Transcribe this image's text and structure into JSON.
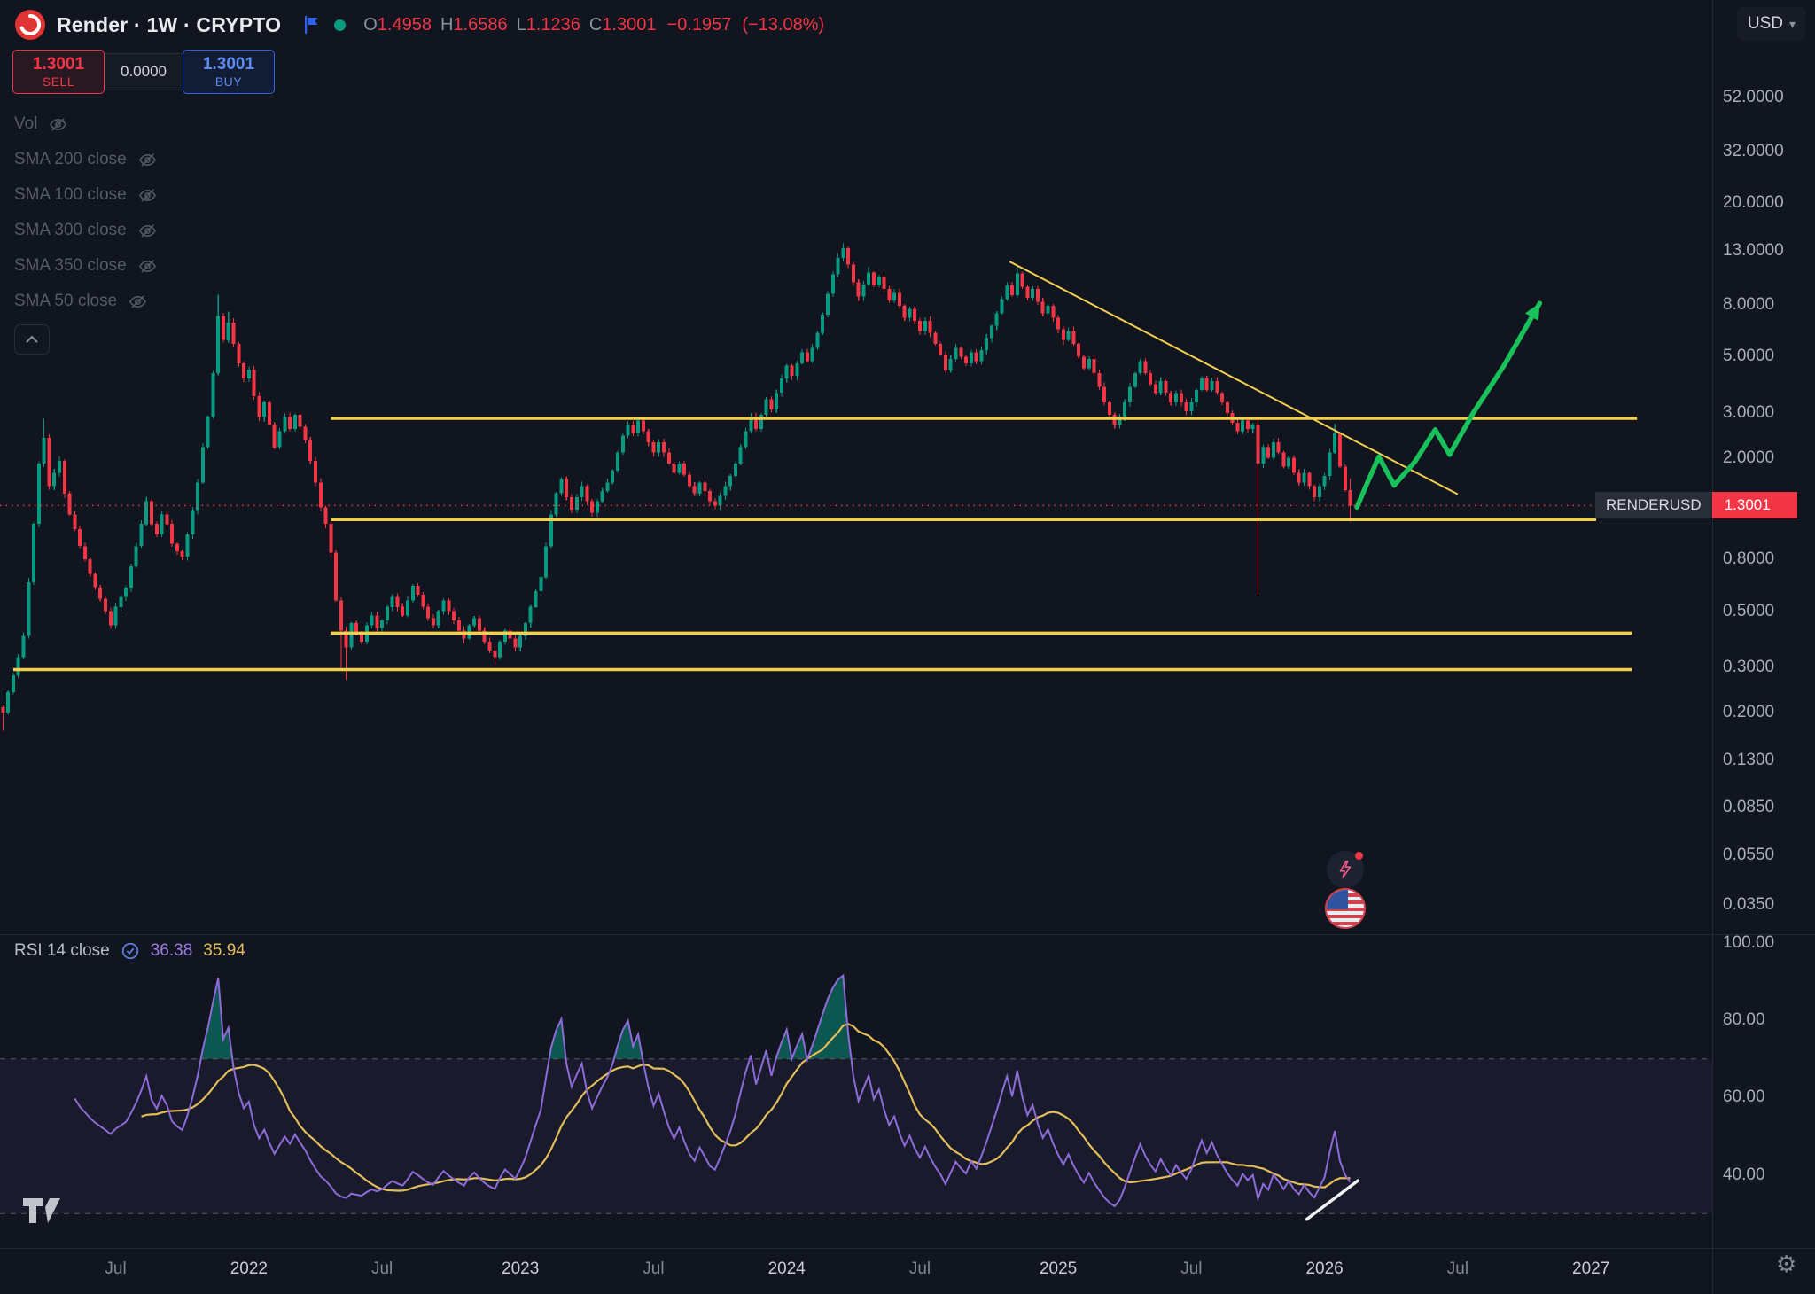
{
  "header": {
    "symbol_title": "Render · 1W · CRYPTO",
    "ohlc": {
      "o_label": "O",
      "o": "1.4958",
      "h_label": "H",
      "h": "1.6586",
      "l_label": "L",
      "l": "1.1236",
      "c_label": "C",
      "c": "1.3001",
      "change": "−0.1957",
      "change_pct": "(−13.08%)"
    },
    "currency_button": "USD"
  },
  "order_panel": {
    "sell_price": "1.3001",
    "sell_label": "SELL",
    "spread": "0.0000",
    "buy_price": "1.3001",
    "buy_label": "BUY"
  },
  "indicators": [
    {
      "label": "Vol"
    },
    {
      "label": "SMA 200 close"
    },
    {
      "label": "SMA 100 close"
    },
    {
      "label": "SMA 300 close"
    },
    {
      "label": "SMA 350 close"
    },
    {
      "label": "SMA 50 close"
    }
  ],
  "price_label_chip": {
    "symbol": "RENDERUSD",
    "price": "1.3001"
  },
  "rsi_legend": {
    "title": "RSI 14 close",
    "value": "36.38",
    "ma_value": "35.94"
  },
  "icons": {
    "logo": "render-logo",
    "flag": "flag-icon",
    "market_status": "market-open-dot",
    "hide": "eye-off-icon",
    "collapse": "chevron-up-icon",
    "settings_glyph": "⚙",
    "caret_down_glyph": "▾",
    "events": [
      "lightning-icon",
      "us-flag-icon"
    ],
    "watermark": "tradingview-logo"
  },
  "colors": {
    "background": "#11151f",
    "up": "#089981",
    "down": "#f23645",
    "yellow": "#f2cf4f",
    "green_projection": "#19c15a",
    "rsi_line": "#8e6bd8",
    "rsi_ma": "#e3bd5a",
    "band": "rgba(126,87,194,0.08)",
    "axis_text": "#a9aeb8"
  },
  "chart_data": {
    "type": "candlestick",
    "symbol": "RENDERUSD",
    "exchange": "CRYPTO",
    "interval": "1W",
    "price_scale": "log",
    "ohlc_current": {
      "open": 1.4958,
      "high": 1.6586,
      "low": 1.1236,
      "close": 1.3001,
      "change": -0.1957,
      "change_pct": -13.08
    },
    "current_price": 1.3001,
    "price_ticks": [
      52,
      32,
      20,
      13,
      8,
      5,
      3,
      2,
      0.8,
      0.5,
      0.3,
      0.2,
      0.13,
      0.085,
      0.055,
      0.035
    ],
    "time_labels": [
      {
        "text": "Jul",
        "week": 22
      },
      {
        "text": "2022",
        "week": 48,
        "major": true
      },
      {
        "text": "Jul",
        "week": 74
      },
      {
        "text": "2023",
        "week": 101,
        "major": true
      },
      {
        "text": "Jul",
        "week": 127
      },
      {
        "text": "2024",
        "week": 153,
        "major": true
      },
      {
        "text": "Jul",
        "week": 179
      },
      {
        "text": "2025",
        "week": 206,
        "major": true
      },
      {
        "text": "Jul",
        "week": 232
      },
      {
        "text": "2026",
        "week": 258,
        "major": true
      },
      {
        "text": "Jul",
        "week": 284
      },
      {
        "text": "2027",
        "week": 310,
        "major": true
      }
    ],
    "closes": [
      0.2,
      0.24,
      0.28,
      0.33,
      0.4,
      0.65,
      1.1,
      1.9,
      2.4,
      1.55,
      1.75,
      1.95,
      1.45,
      1.2,
      1.05,
      0.9,
      0.8,
      0.7,
      0.62,
      0.56,
      0.5,
      0.44,
      0.52,
      0.57,
      0.62,
      0.75,
      0.9,
      1.1,
      1.35,
      1.1,
      1.0,
      1.2,
      1.1,
      0.92,
      0.86,
      0.82,
      1.0,
      1.25,
      1.6,
      2.2,
      2.9,
      4.3,
      7.2,
      5.8,
      6.8,
      5.6,
      4.7,
      4.1,
      4.45,
      3.5,
      2.9,
      3.3,
      2.7,
      2.2,
      2.55,
      2.9,
      2.6,
      2.95,
      2.65,
      2.35,
      1.95,
      1.6,
      1.28,
      1.1,
      0.85,
      0.55,
      0.42,
      0.36,
      0.45,
      0.41,
      0.38,
      0.44,
      0.48,
      0.43,
      0.46,
      0.52,
      0.57,
      0.52,
      0.48,
      0.55,
      0.63,
      0.58,
      0.52,
      0.47,
      0.44,
      0.5,
      0.55,
      0.5,
      0.46,
      0.42,
      0.39,
      0.44,
      0.47,
      0.42,
      0.38,
      0.35,
      0.33,
      0.38,
      0.42,
      0.39,
      0.36,
      0.4,
      0.45,
      0.52,
      0.6,
      0.68,
      0.9,
      1.2,
      1.45,
      1.65,
      1.4,
      1.25,
      1.4,
      1.55,
      1.35,
      1.22,
      1.35,
      1.48,
      1.6,
      1.78,
      2.1,
      2.45,
      2.7,
      2.5,
      2.8,
      2.55,
      2.3,
      2.1,
      2.3,
      2.1,
      1.9,
      1.75,
      1.9,
      1.72,
      1.55,
      1.45,
      1.6,
      1.48,
      1.35,
      1.3,
      1.42,
      1.55,
      1.7,
      1.9,
      2.2,
      2.55,
      2.9,
      2.6,
      2.95,
      3.4,
      3.1,
      3.6,
      4.1,
      4.6,
      4.2,
      4.7,
      5.2,
      4.8,
      5.4,
      6.2,
      7.3,
      8.8,
      10.5,
      12.2,
      13.3,
      11.5,
      9.8,
      8.6,
      9.6,
      10.7,
      9.5,
      10.3,
      9.2,
      8.3,
      8.9,
      7.9,
      7.1,
      7.7,
      6.9,
      6.3,
      6.9,
      6.2,
      5.6,
      5.1,
      4.4,
      4.9,
      5.4,
      5.0,
      4.7,
      5.2,
      4.8,
      5.3,
      5.9,
      6.6,
      7.4,
      8.4,
      9.5,
      8.7,
      10.6,
      9.4,
      8.5,
      9.2,
      8.2,
      7.4,
      7.9,
      7.1,
      6.4,
      5.8,
      6.3,
      5.6,
      5.0,
      4.5,
      4.9,
      4.3,
      3.8,
      3.3,
      2.95,
      2.7,
      2.9,
      3.3,
      3.8,
      4.3,
      4.8,
      4.3,
      3.9,
      3.6,
      4.0,
      3.6,
      3.3,
      3.6,
      3.3,
      3.05,
      3.3,
      3.7,
      4.1,
      3.7,
      4.0,
      3.6,
      3.3,
      3.0,
      2.75,
      2.55,
      2.8,
      2.6,
      2.7,
      1.9,
      2.2,
      2.0,
      2.3,
      2.1,
      1.85,
      2.0,
      1.75,
      1.6,
      1.75,
      1.55,
      1.4,
      1.55,
      1.7,
      2.1,
      2.5,
      1.85,
      1.4958,
      1.3001
    ],
    "wick_overrides": {
      "0": {
        "l": 0.17
      },
      "8": {
        "h": 2.85
      },
      "42": {
        "h": 8.76
      },
      "44": {
        "h": 7.5
      },
      "66": {
        "l": 0.3
      },
      "67": {
        "l": 0.27
      },
      "96": {
        "l": 0.31
      },
      "164": {
        "h": 13.9
      },
      "169": {
        "h": 11.2
      },
      "198": {
        "h": 11.5
      },
      "245": {
        "h": 2.9,
        "l": 0.58
      },
      "260": {
        "h": 2.72
      },
      "263": {
        "h": 1.6586,
        "l": 1.1236
      }
    },
    "horizontal_lines": [
      {
        "price": 2.86,
        "w1": 64,
        "w2": 319
      },
      {
        "price": 1.145,
        "w1": 64,
        "w2": 311
      },
      {
        "price": 0.41,
        "w1": 64,
        "w2": 318
      },
      {
        "price": 0.295,
        "w1": 2,
        "w2": 318
      }
    ],
    "trendline": {
      "w1": 196.5,
      "p1": 11.8,
      "w2": 284,
      "p2": 1.44
    },
    "projection": [
      [
        264.3,
        1.28
      ],
      [
        266.6,
        1.64
      ],
      [
        268.6,
        2.02
      ],
      [
        271.6,
        1.56
      ],
      [
        275.6,
        1.93
      ],
      [
        279.6,
        2.58
      ],
      [
        282.4,
        2.06
      ],
      [
        287,
        3.0
      ],
      [
        293,
        4.6
      ],
      [
        300,
        8.1
      ]
    ],
    "rsi": {
      "period": 14,
      "ma_period": 14,
      "current": 36.38,
      "ma_current": 35.94,
      "upper": 70,
      "lower": 30,
      "ticks": [
        100,
        80,
        60,
        40
      ],
      "white_trendline": {
        "w1": 254.5,
        "v1": 28.5,
        "w2": 264.5,
        "v2": 38.5
      }
    }
  }
}
